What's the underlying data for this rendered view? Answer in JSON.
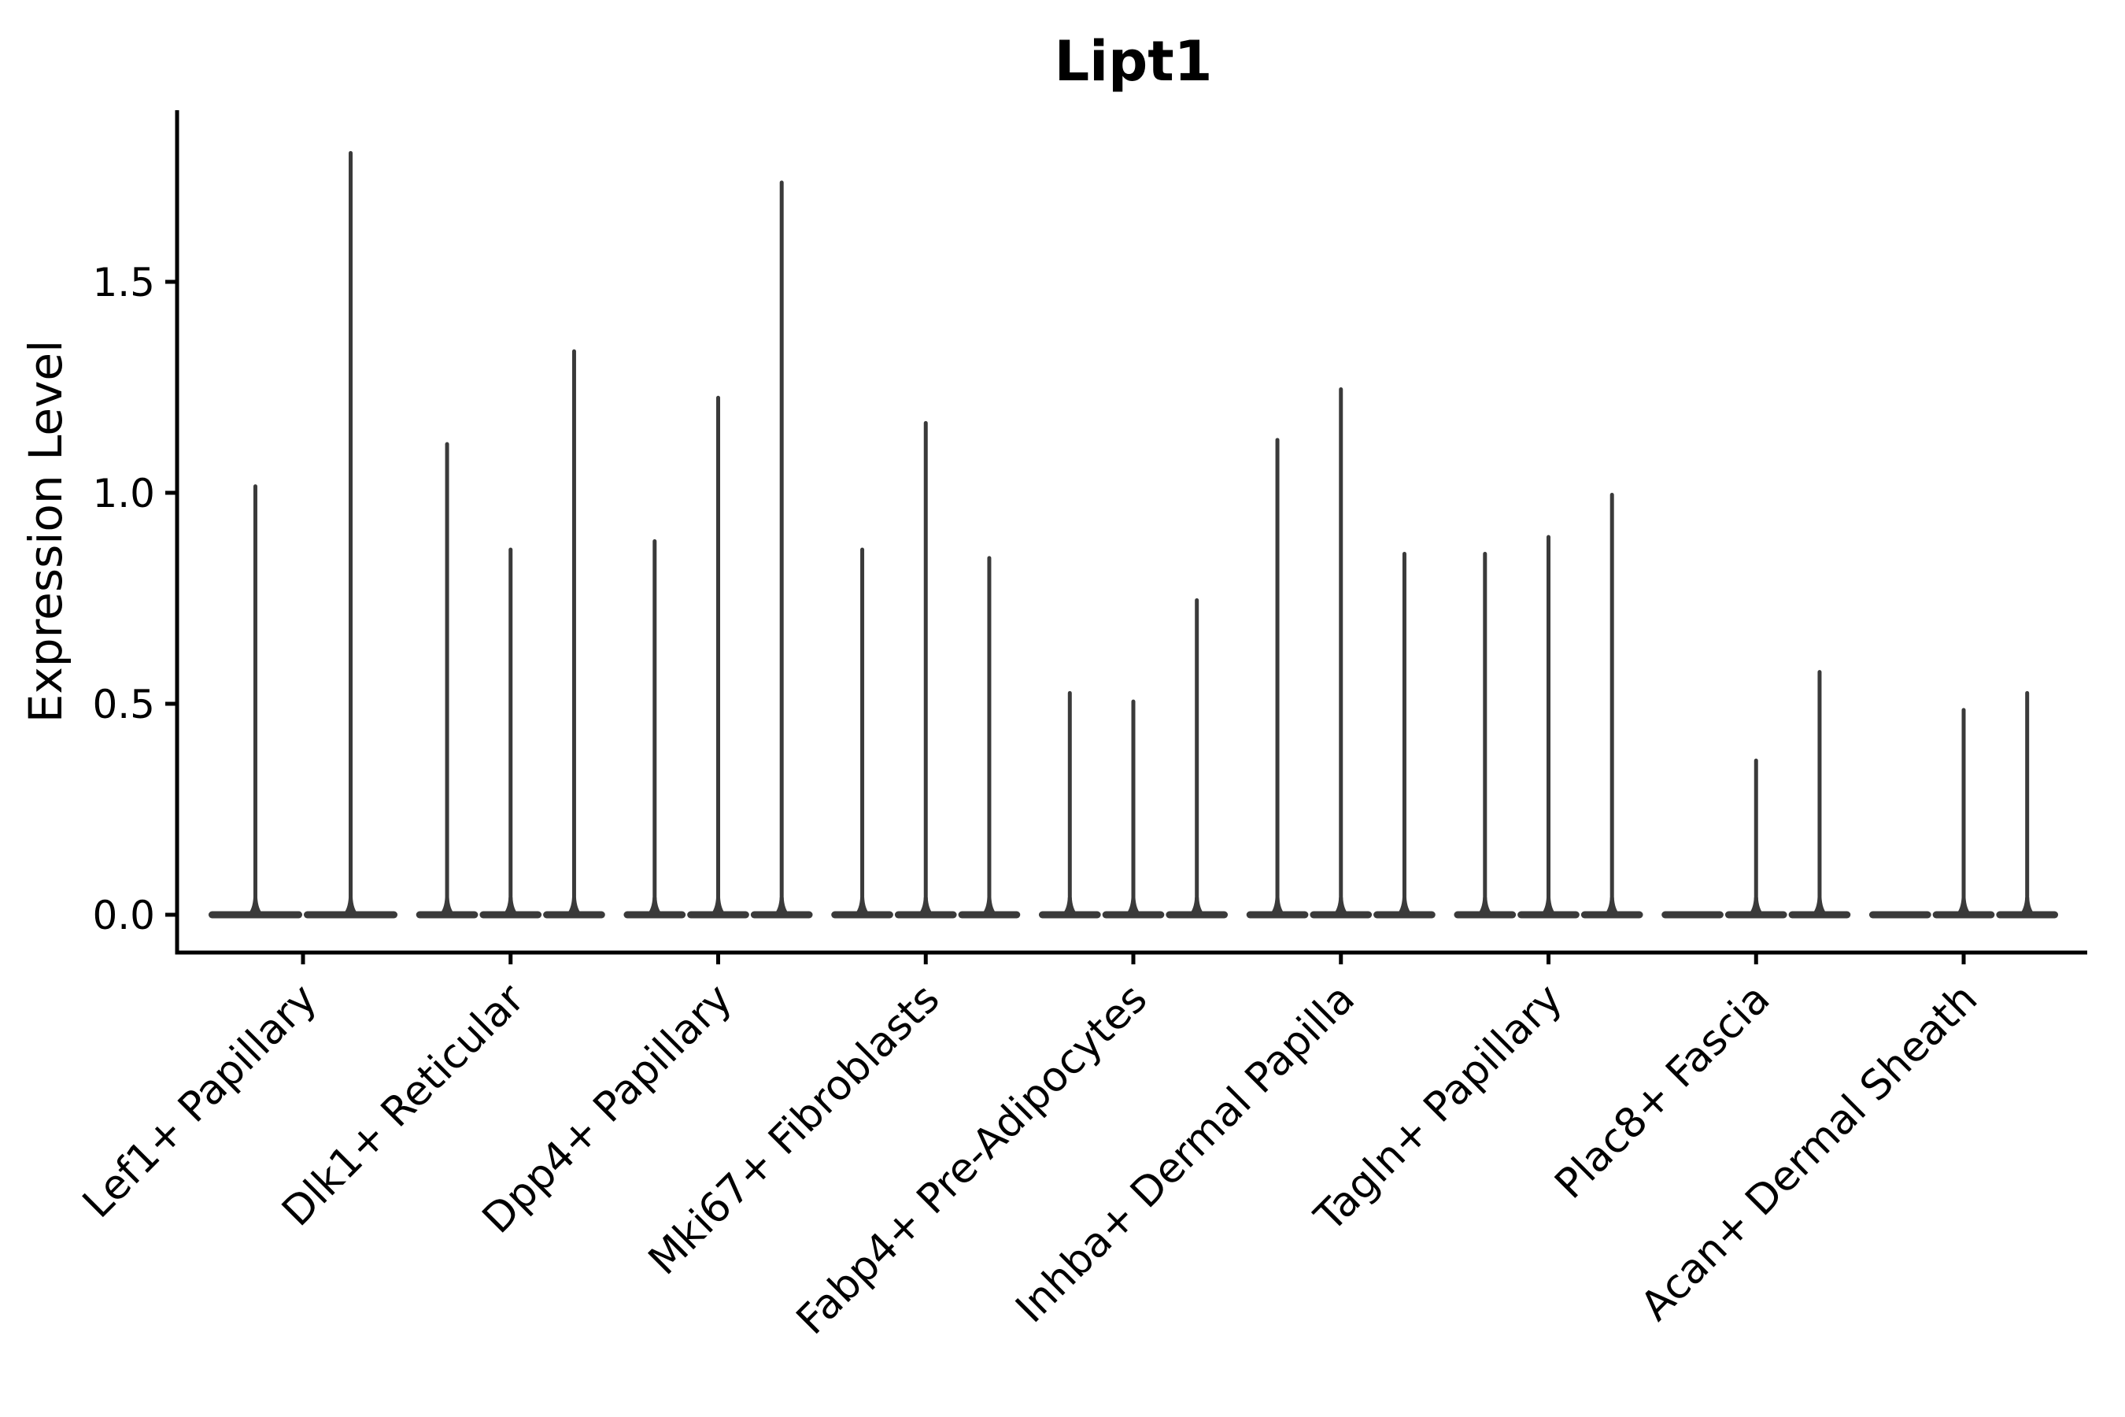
{
  "chart_data": {
    "type": "violin",
    "title": "Lipt1",
    "xlabel": "",
    "ylabel": "Expression Level",
    "yticks": [
      0.0,
      0.5,
      1.0,
      1.5
    ],
    "ylim": [
      -0.09,
      1.91
    ],
    "grid": false,
    "legend": "none",
    "categories": [
      "Lef1+ Papillary",
      "Dlk1+ Reticular",
      "Dpp4+ Papillary",
      "Mki67+ Fibroblasts",
      "Fabp4+ Pre-Adipocytes",
      "Inhba+ Dermal Papilla",
      "Tagln+ Papillary",
      "Plac8+ Fascia",
      "Acan+ Dermal Sheath"
    ],
    "groups": [
      {
        "category": "Lef1+ Papillary",
        "violin_max_values": [
          1.02,
          1.81
        ]
      },
      {
        "category": "Dlk1+ Reticular",
        "violin_max_values": [
          1.12,
          0.87,
          1.34
        ]
      },
      {
        "category": "Dpp4+ Papillary",
        "violin_max_values": [
          0.89,
          1.23,
          1.74
        ]
      },
      {
        "category": "Mki67+ Fibroblasts",
        "violin_max_values": [
          0.87,
          1.17,
          0.85
        ]
      },
      {
        "category": "Fabp4+ Pre-Adipocytes",
        "violin_max_values": [
          0.53,
          0.51,
          0.75
        ]
      },
      {
        "category": "Inhba+ Dermal Papilla",
        "violin_max_values": [
          1.13,
          1.25,
          0.86
        ]
      },
      {
        "category": "Tagln+ Papillary",
        "violin_max_values": [
          0.86,
          0.9,
          1.0
        ]
      },
      {
        "category": "Plac8+ Fascia",
        "violin_max_values": [
          0.0,
          0.37,
          0.58
        ]
      },
      {
        "category": "Acan+ Dermal Sheath",
        "violin_max_values": [
          0.0,
          0.49,
          0.53
        ]
      }
    ],
    "violin_shape_note": "flat base at 0 with thin density spike up to max value",
    "colors": {
      "violin": "#3a3a3a",
      "axis": "#000000",
      "text": "#000000",
      "background": "#ffffff"
    }
  }
}
